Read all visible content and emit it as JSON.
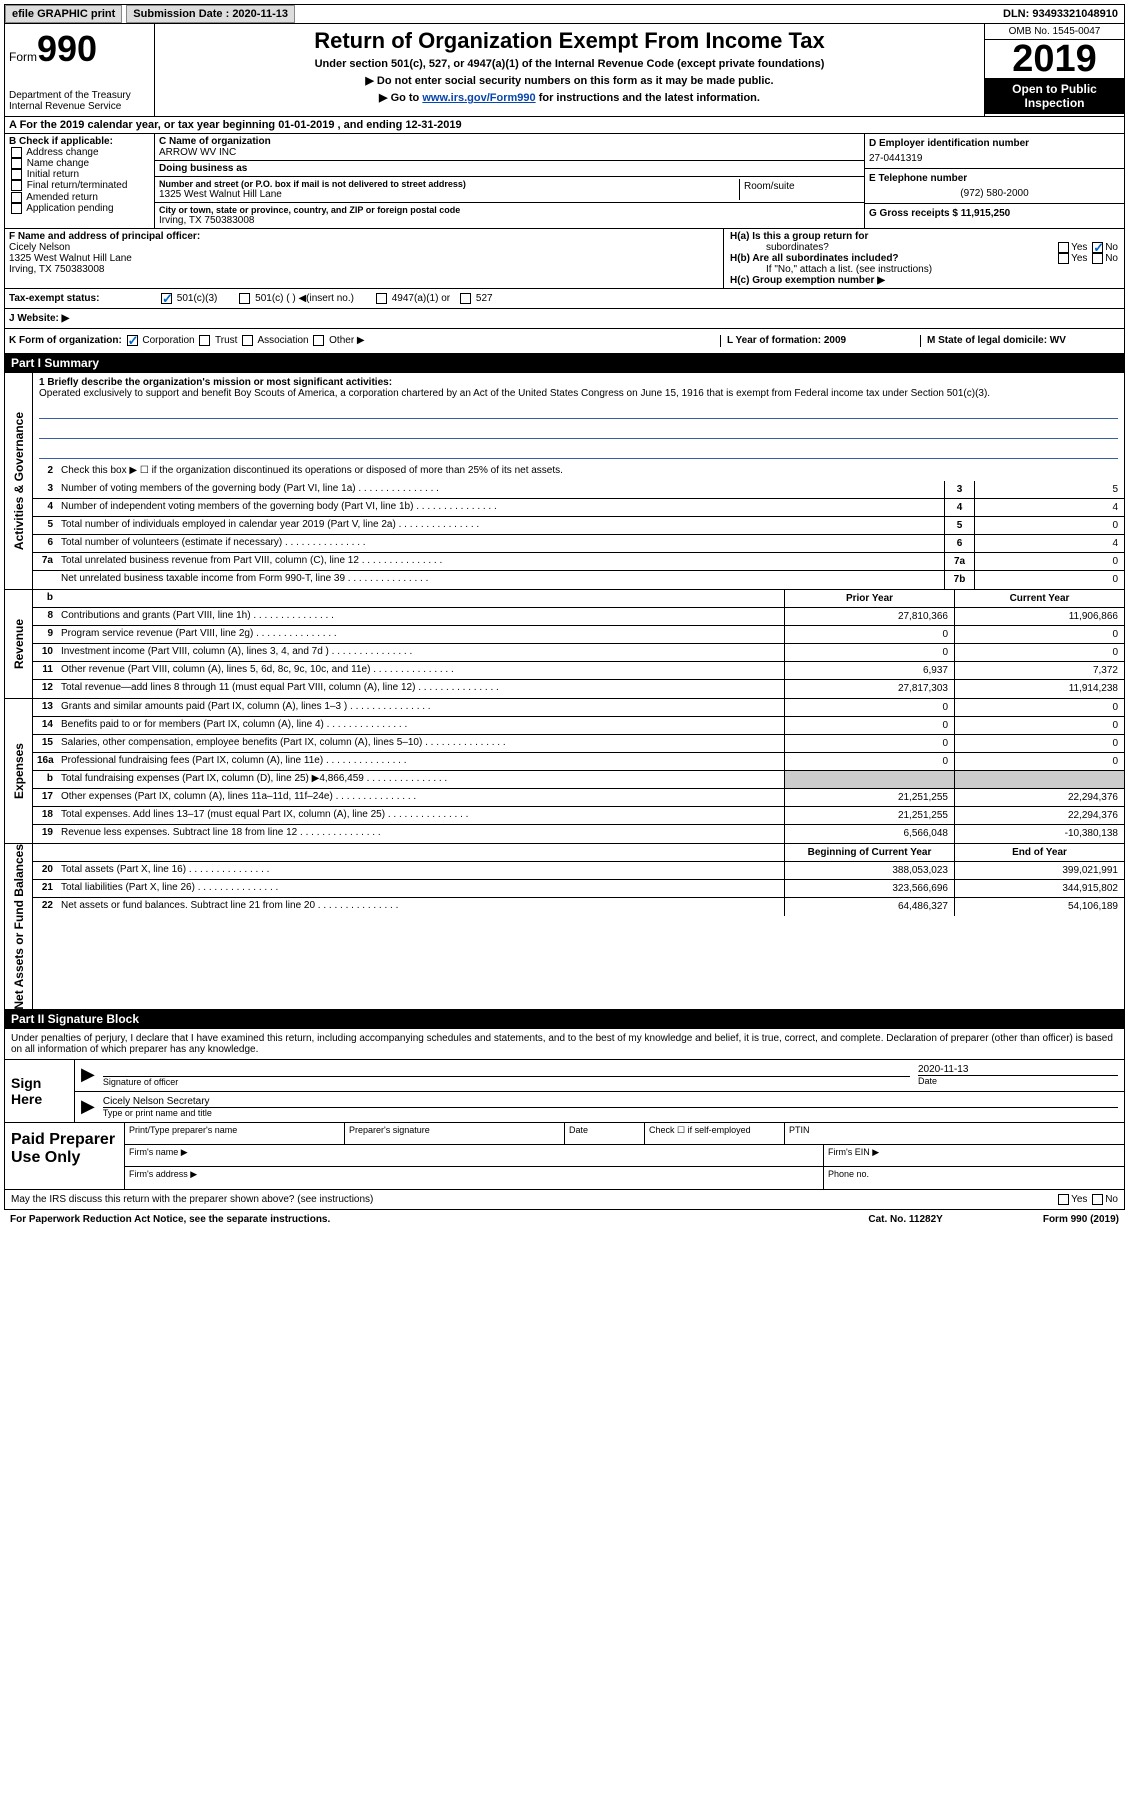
{
  "topbar": {
    "efile": "efile GRAPHIC print",
    "submission_label": "Submission Date : 2020-11-13",
    "dln": "DLN: 93493321048910"
  },
  "header": {
    "form_label": "Form",
    "form_num": "990",
    "dept": "Department of the Treasury",
    "irs": "Internal Revenue Service",
    "title": "Return of Organization Exempt From Income Tax",
    "sub1": "Under section 501(c), 527, or 4947(a)(1) of the Internal Revenue Code (except private foundations)",
    "sub2": "▶ Do not enter social security numbers on this form as it may be made public.",
    "sub3_pre": "▶ Go to ",
    "sub3_link": "www.irs.gov/Form990",
    "sub3_post": " for instructions and the latest information.",
    "omb": "OMB No. 1545-0047",
    "year": "2019",
    "inspection": "Open to Public Inspection"
  },
  "row_a": "A For the 2019 calendar year, or tax year beginning 01-01-2019   , and ending 12-31-2019",
  "col_b": {
    "label": "B Check if applicable:",
    "items": [
      "Address change",
      "Name change",
      "Initial return",
      "Final return/terminated",
      "Amended return",
      "Application pending"
    ]
  },
  "col_c": {
    "name_label": "C Name of organization",
    "name": "ARROW WV INC",
    "dba_label": "Doing business as",
    "dba": "",
    "street_label": "Number and street (or P.O. box if mail is not delivered to street address)",
    "suite_label": "Room/suite",
    "street": "1325 West Walnut Hill Lane",
    "city_label": "City or town, state or province, country, and ZIP or foreign postal code",
    "city": "Irving, TX  750383008"
  },
  "col_d": {
    "ein_label": "D Employer identification number",
    "ein": "27-0441319",
    "phone_label": "E Telephone number",
    "phone": "(972) 580-2000",
    "gross_label": "G Gross receipts $ 11,915,250"
  },
  "row_f": {
    "label": "F  Name and address of principal officer:",
    "name": "Cicely Nelson",
    "addr1": "1325 West Walnut Hill Lane",
    "addr2": "Irving, TX  750383008"
  },
  "row_h": {
    "ha_label": "H(a)  Is this a group return for",
    "ha_sub": "subordinates?",
    "hb_label": "H(b)  Are all subordinates included?",
    "hb_note": "If \"No,\" attach a list. (see instructions)",
    "hc_label": "H(c)  Group exemption number ▶",
    "yes": "Yes",
    "no": "No"
  },
  "row_i_label": "Tax-exempt status:",
  "row_i_501c3": "501(c)(3)",
  "row_i_501c": "501(c) (  ) ◀(insert no.)",
  "row_i_4947": "4947(a)(1) or",
  "row_i_527": "527",
  "row_j_label": "J  Website: ▶",
  "row_k": {
    "label": "K Form of organization:",
    "corp": "Corporation",
    "trust": "Trust",
    "assoc": "Association",
    "other": "Other ▶",
    "l_label": "L Year of formation: 2009",
    "m_label": "M State of legal domicile: WV"
  },
  "part1_label": "Part I      Summary",
  "part2_label": "Part II     Signature Block",
  "vtabs": {
    "gov": "Activities & Governance",
    "rev": "Revenue",
    "exp": "Expenses",
    "net": "Net Assets or Fund Balances"
  },
  "mission": {
    "label": "1  Briefly describe the organization's mission or most significant activities:",
    "text": "Operated exclusively to support and benefit Boy Scouts of America, a corporation chartered by an Act of the United States Congress on June 15, 1916 that is exempt from Federal income tax under Section 501(c)(3)."
  },
  "gov_lines": [
    {
      "n": "2",
      "t": "Check this box ▶ ☐ if the organization discontinued its operations or disposed of more than 25% of its net assets.",
      "box": "",
      "v": ""
    },
    {
      "n": "3",
      "t": "Number of voting members of the governing body (Part VI, line 1a)",
      "box": "3",
      "v": "5"
    },
    {
      "n": "4",
      "t": "Number of independent voting members of the governing body (Part VI, line 1b)",
      "box": "4",
      "v": "4"
    },
    {
      "n": "5",
      "t": "Total number of individuals employed in calendar year 2019 (Part V, line 2a)",
      "box": "5",
      "v": "0"
    },
    {
      "n": "6",
      "t": "Total number of volunteers (estimate if necessary)",
      "box": "6",
      "v": "4"
    },
    {
      "n": "7a",
      "t": "Total unrelated business revenue from Part VIII, column (C), line 12",
      "box": "7a",
      "v": "0"
    },
    {
      "n": "",
      "t": "Net unrelated business taxable income from Form 990-T, line 39",
      "box": "7b",
      "v": "0"
    }
  ],
  "col_headers": {
    "prior": "Prior Year",
    "curr": "Current Year",
    "beg": "Beginning of Current Year",
    "end": "End of Year"
  },
  "rev_lines": [
    {
      "n": "8",
      "t": "Contributions and grants (Part VIII, line 1h)",
      "p": "27,810,366",
      "c": "11,906,866"
    },
    {
      "n": "9",
      "t": "Program service revenue (Part VIII, line 2g)",
      "p": "0",
      "c": "0"
    },
    {
      "n": "10",
      "t": "Investment income (Part VIII, column (A), lines 3, 4, and 7d )",
      "p": "0",
      "c": "0"
    },
    {
      "n": "11",
      "t": "Other revenue (Part VIII, column (A), lines 5, 6d, 8c, 9c, 10c, and 11e)",
      "p": "6,937",
      "c": "7,372"
    },
    {
      "n": "12",
      "t": "Total revenue—add lines 8 through 11 (must equal Part VIII, column (A), line 12)",
      "p": "27,817,303",
      "c": "11,914,238"
    }
  ],
  "exp_lines": [
    {
      "n": "13",
      "t": "Grants and similar amounts paid (Part IX, column (A), lines 1–3 )",
      "p": "0",
      "c": "0"
    },
    {
      "n": "14",
      "t": "Benefits paid to or for members (Part IX, column (A), line 4)",
      "p": "0",
      "c": "0"
    },
    {
      "n": "15",
      "t": "Salaries, other compensation, employee benefits (Part IX, column (A), lines 5–10)",
      "p": "0",
      "c": "0"
    },
    {
      "n": "16a",
      "t": "Professional fundraising fees (Part IX, column (A), line 11e)",
      "p": "0",
      "c": "0"
    },
    {
      "n": "b",
      "t": "Total fundraising expenses (Part IX, column (D), line 25) ▶4,866,459",
      "p": "",
      "c": "",
      "grey": true
    },
    {
      "n": "17",
      "t": "Other expenses (Part IX, column (A), lines 11a–11d, 11f–24e)",
      "p": "21,251,255",
      "c": "22,294,376"
    },
    {
      "n": "18",
      "t": "Total expenses. Add lines 13–17 (must equal Part IX, column (A), line 25)",
      "p": "21,251,255",
      "c": "22,294,376"
    },
    {
      "n": "19",
      "t": "Revenue less expenses. Subtract line 18 from line 12",
      "p": "6,566,048",
      "c": "-10,380,138"
    }
  ],
  "net_lines": [
    {
      "n": "20",
      "t": "Total assets (Part X, line 16)",
      "p": "388,053,023",
      "c": "399,021,991"
    },
    {
      "n": "21",
      "t": "Total liabilities (Part X, line 26)",
      "p": "323,566,696",
      "c": "344,915,802"
    },
    {
      "n": "22",
      "t": "Net assets or fund balances. Subtract line 21 from line 20",
      "p": "64,486,327",
      "c": "54,106,189"
    }
  ],
  "sig": {
    "penalty": "Under penalties of perjury, I declare that I have examined this return, including accompanying schedules and statements, and to the best of my knowledge and belief, it is true, correct, and complete. Declaration of preparer (other than officer) is based on all information of which preparer has any knowledge.",
    "sign_here": "Sign Here",
    "sig_officer": "Signature of officer",
    "date_label": "Date",
    "date_val": "2020-11-13",
    "name_title": "Cicely Nelson  Secretary",
    "name_title_label": "Type or print name and title",
    "paid_label": "Paid Preparer Use Only",
    "print_name": "Print/Type preparer's name",
    "prep_sig": "Preparer's signature",
    "check_self": "Check ☐ if self-employed",
    "ptin": "PTIN",
    "firm_name": "Firm's name   ▶",
    "firm_ein": "Firm's EIN ▶",
    "firm_addr": "Firm's address ▶",
    "phone": "Phone no."
  },
  "discuss": "May the IRS discuss this return with the preparer shown above? (see instructions)",
  "footer": {
    "l": "For Paperwork Reduction Act Notice, see the separate instructions.",
    "c": "Cat. No. 11282Y",
    "r": "Form 990 (2019)"
  }
}
